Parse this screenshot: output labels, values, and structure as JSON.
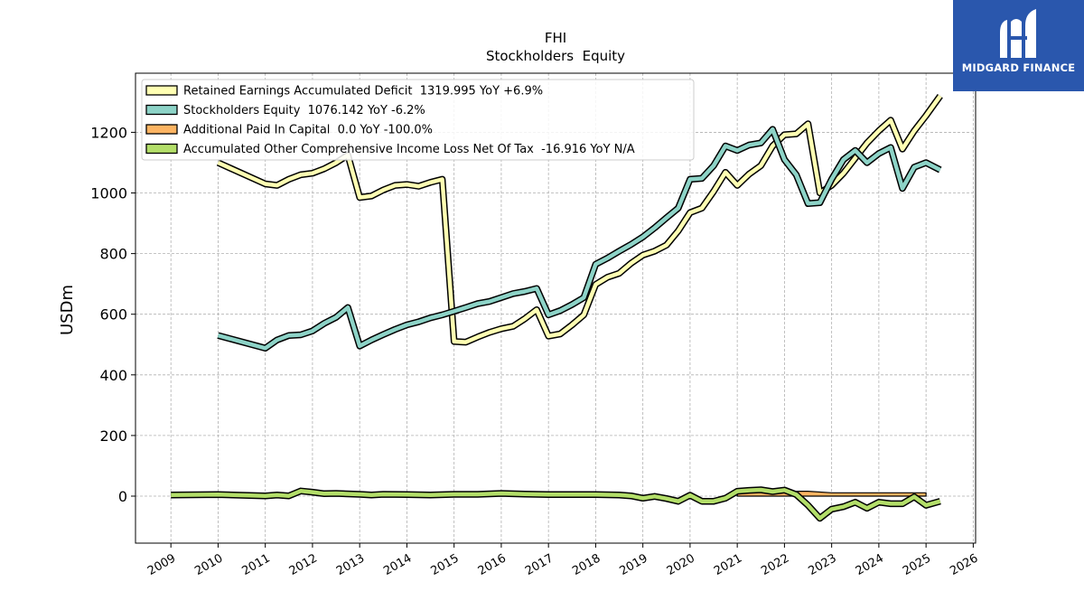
{
  "chart_data": {
    "type": "line",
    "title": "FHI",
    "subtitle": "Stockholders  Equity",
    "ylabel": "USDm",
    "xlabel": "",
    "xlim": [
      2008.25,
      2026.05
    ],
    "ylim": [
      -155,
      1395
    ],
    "yticks": [
      0,
      200,
      400,
      600,
      800,
      1000,
      1200
    ],
    "xticks": [
      2009,
      2010,
      2011,
      2012,
      2013,
      2014,
      2015,
      2016,
      2017,
      2018,
      2019,
      2020,
      2021,
      2022,
      2023,
      2024,
      2025,
      2026
    ],
    "grid": true,
    "legend_position": "top-left",
    "series": [
      {
        "name": "Retained Earnings Accumulated Deficit  1319.995 YoY +6.9%",
        "color": "#ffffb3",
        "x": [
          2010.0,
          2011.0,
          2011.25,
          2011.5,
          2011.75,
          2012.0,
          2012.25,
          2012.5,
          2012.75,
          2013.0,
          2013.25,
          2013.5,
          2013.75,
          2014.0,
          2014.25,
          2014.5,
          2014.75,
          2015.0,
          2015.25,
          2015.5,
          2015.75,
          2016.0,
          2016.25,
          2016.5,
          2016.75,
          2017.0,
          2017.25,
          2017.5,
          2017.75,
          2018.0,
          2018.25,
          2018.5,
          2018.75,
          2019.0,
          2019.25,
          2019.5,
          2019.75,
          2020.0,
          2020.25,
          2020.5,
          2020.75,
          2021.0,
          2021.25,
          2021.5,
          2021.75,
          2022.0,
          2022.25,
          2022.5,
          2022.75,
          2023.0,
          2023.25,
          2023.5,
          2023.75,
          2024.0,
          2024.25,
          2024.5,
          2024.75,
          2025.0,
          2025.3
        ],
        "y": [
          1100,
          1030,
          1025,
          1045,
          1060,
          1065,
          1080,
          1100,
          1125,
          985,
          990,
          1010,
          1025,
          1028,
          1022,
          1035,
          1045,
          510,
          508,
          525,
          540,
          552,
          560,
          585,
          615,
          528,
          535,
          565,
          598,
          698,
          722,
          735,
          768,
          795,
          808,
          828,
          875,
          935,
          950,
          1005,
          1068,
          1025,
          1062,
          1090,
          1155,
          1192,
          1195,
          1228,
          1000,
          1025,
          1065,
          1115,
          1165,
          1205,
          1240,
          1145,
          1205,
          1255,
          1320
        ]
      },
      {
        "name": "Stockholders Equity  1076.142 YoY -6.2%",
        "color": "#8dd3c7",
        "x": [
          2010.0,
          2011.0,
          2011.25,
          2011.5,
          2011.75,
          2012.0,
          2012.25,
          2012.5,
          2012.75,
          2013.0,
          2013.25,
          2013.5,
          2013.75,
          2014.0,
          2014.25,
          2014.5,
          2014.75,
          2015.0,
          2015.25,
          2015.5,
          2015.75,
          2016.0,
          2016.25,
          2016.5,
          2016.75,
          2017.0,
          2017.25,
          2017.5,
          2017.75,
          2018.0,
          2018.25,
          2018.5,
          2018.75,
          2019.0,
          2019.25,
          2019.5,
          2019.75,
          2020.0,
          2020.25,
          2020.5,
          2020.75,
          2021.0,
          2021.25,
          2021.5,
          2021.75,
          2022.0,
          2022.25,
          2022.5,
          2022.75,
          2023.0,
          2023.25,
          2023.5,
          2023.75,
          2024.0,
          2024.25,
          2024.5,
          2024.75,
          2025.0,
          2025.3
        ],
        "y": [
          530,
          488,
          515,
          530,
          532,
          545,
          570,
          590,
          622,
          495,
          515,
          533,
          550,
          565,
          575,
          588,
          598,
          610,
          622,
          635,
          642,
          655,
          668,
          675,
          685,
          598,
          612,
          632,
          655,
          765,
          785,
          808,
          830,
          855,
          885,
          918,
          950,
          1045,
          1048,
          1090,
          1155,
          1140,
          1158,
          1165,
          1210,
          1110,
          1060,
          965,
          968,
          1045,
          1110,
          1140,
          1100,
          1130,
          1150,
          1015,
          1085,
          1100,
          1076
        ]
      },
      {
        "name": "Additional Paid In Capital  0.0 YoY -100.0%",
        "color": "#fdb462",
        "x": [
          2021.0,
          2021.5,
          2022.0,
          2022.5,
          2023.0,
          2023.5,
          2024.0,
          2024.5,
          2025.0
        ],
        "y": [
          14,
          16,
          16,
          16,
          11,
          11,
          11,
          11,
          11
        ]
      },
      {
        "name": "Accumulated Other Comprehensive Income Loss Net Of Tax  -16.916 YoY N/A",
        "color": "#b3de69",
        "x": [
          2009.0,
          2010.0,
          2011.0,
          2011.25,
          2011.5,
          2011.75,
          2012.0,
          2012.25,
          2012.5,
          2013.0,
          2013.25,
          2013.5,
          2014.0,
          2014.5,
          2015.0,
          2015.5,
          2016.0,
          2016.5,
          2017.0,
          2017.5,
          2018.0,
          2018.5,
          2018.75,
          2019.0,
          2019.25,
          2019.5,
          2019.75,
          2020.0,
          2020.25,
          2020.5,
          2020.75,
          2021.0,
          2021.25,
          2021.5,
          2021.75,
          2022.0,
          2022.25,
          2022.5,
          2022.75,
          2023.0,
          2023.25,
          2023.5,
          2023.75,
          2024.0,
          2024.25,
          2024.5,
          2024.75,
          2025.0,
          2025.3
        ],
        "y": [
          4,
          5,
          1,
          4,
          1,
          17,
          13,
          8,
          9,
          6,
          4,
          6,
          5,
          4,
          6,
          6,
          9,
          7,
          5,
          5,
          5,
          4,
          1,
          -7,
          -1,
          -8,
          -17,
          3,
          -17,
          -17,
          -7,
          16,
          19,
          21,
          15,
          20,
          5,
          -30,
          -73,
          -43,
          -35,
          -20,
          -40,
          -20,
          -25,
          -25,
          -2,
          -30,
          -17
        ]
      }
    ]
  },
  "logo": {
    "text": "MIDGARD FINANCE"
  }
}
